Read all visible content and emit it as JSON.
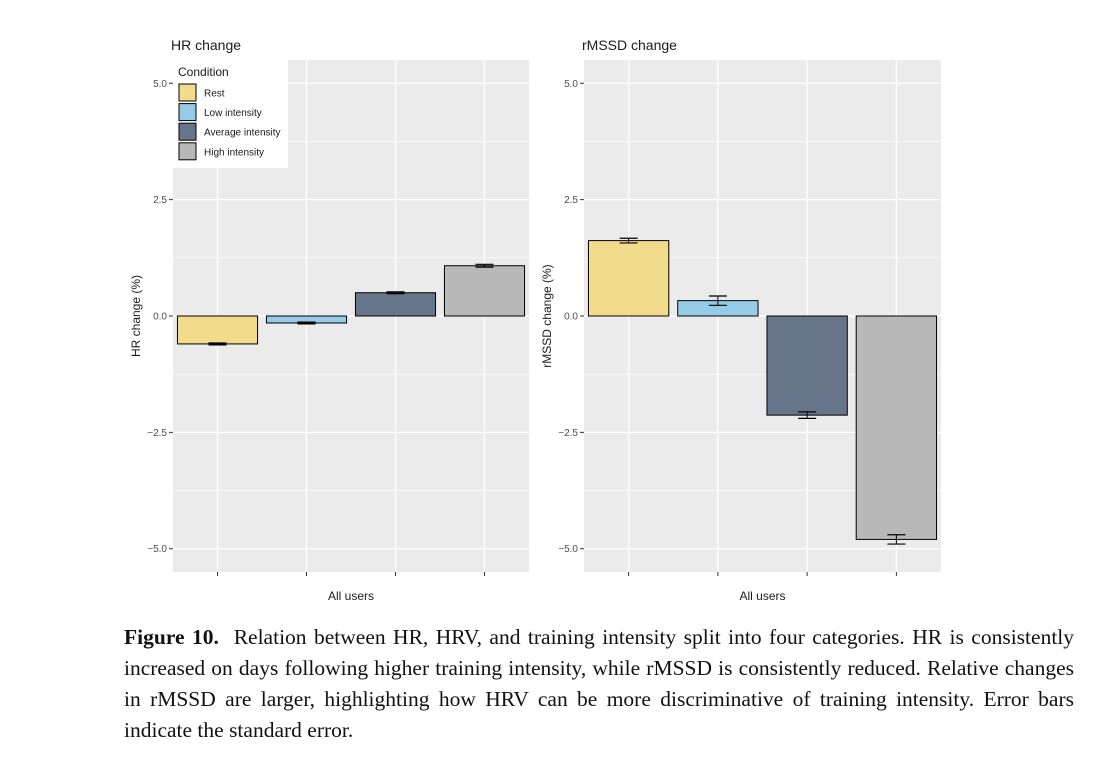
{
  "chart_data": [
    {
      "type": "bar",
      "title": "HR change",
      "xlabel": "All users",
      "ylabel": "HR change (%)",
      "ylim": [
        -5.5,
        5.5
      ],
      "yticks": [
        -5.0,
        -2.5,
        0.0,
        2.5,
        5.0
      ],
      "ytick_labels": [
        "−5.0",
        "−2.5",
        "0.0",
        "2.5",
        "5.0"
      ],
      "grid": true,
      "legend": {
        "title": "Condition",
        "position": "top-left",
        "entries": [
          "Rest",
          "Low intensity",
          "Average intensity",
          "High intensity"
        ]
      },
      "categories": [
        "Rest",
        "Low intensity",
        "Average intensity",
        "High intensity"
      ],
      "values": [
        -0.6,
        -0.15,
        0.5,
        1.08
      ],
      "errors": [
        0.02,
        0.02,
        0.02,
        0.03
      ],
      "colors": [
        "#f3db8c",
        "#96cbe8",
        "#667589",
        "#b8b8b8"
      ]
    },
    {
      "type": "bar",
      "title": "rMSSD change",
      "xlabel": "All users",
      "ylabel": "rMSSD change (%)",
      "ylim": [
        -5.5,
        5.5
      ],
      "yticks": [
        -5.0,
        -2.5,
        0.0,
        2.5,
        5.0
      ],
      "ytick_labels": [
        "−5.0",
        "−2.5",
        "0.0",
        "2.5",
        "5.0"
      ],
      "grid": true,
      "categories": [
        "Rest",
        "Low intensity",
        "Average intensity",
        "High intensity"
      ],
      "values": [
        1.62,
        0.33,
        -2.13,
        -4.8
      ],
      "errors": [
        0.05,
        0.1,
        0.07,
        0.1
      ],
      "colors": [
        "#f3db8c",
        "#96cbe8",
        "#667589",
        "#b8b8b8"
      ]
    }
  ],
  "caption": {
    "label": "Figure 10.",
    "text": "Relation between HR, HRV, and training intensity split into four categories. HR is consistently increased on days following higher training intensity, while rMSSD is consistently reduced. Relative changes in rMSSD are larger, highlighting how HRV can be more discriminative of training intensity. Error bars indicate the standard error."
  }
}
